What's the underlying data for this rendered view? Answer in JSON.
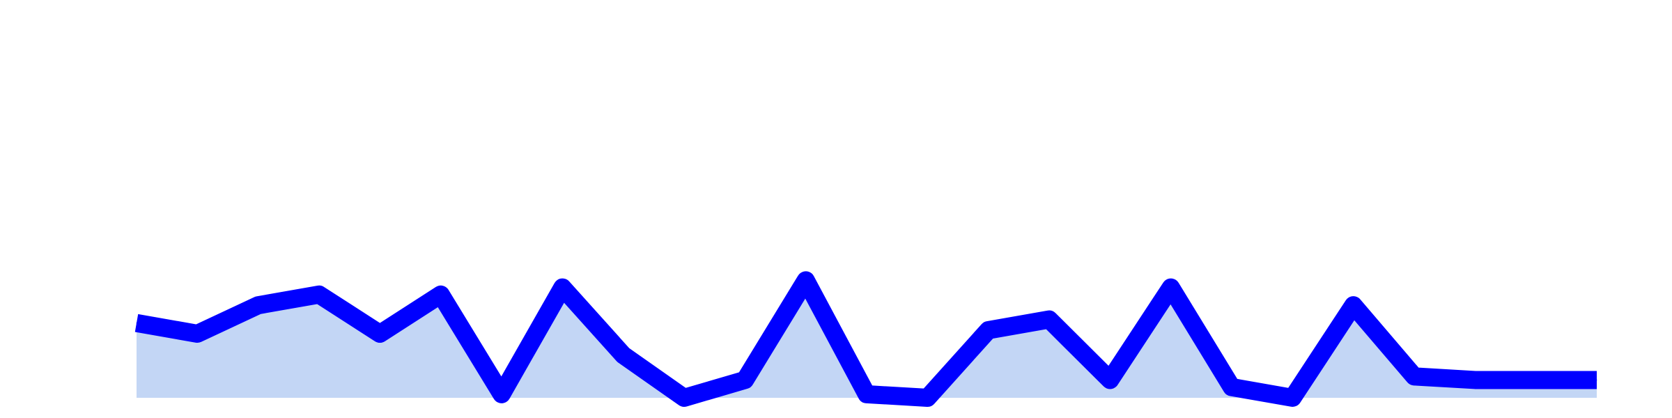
{
  "colors": {
    "background": "#ffffff",
    "line": "#0000ff",
    "area_fill": "#c3d6f5"
  },
  "chart_data": {
    "type": "area",
    "title": "",
    "xlabel": "",
    "ylabel": "",
    "grid": false,
    "x": [
      0,
      1,
      2,
      3,
      4,
      5,
      6,
      7,
      8,
      9,
      10,
      11,
      12,
      13,
      14,
      15,
      16,
      17,
      18,
      19,
      20,
      21,
      22,
      23,
      24
    ],
    "series": [
      {
        "values": [
          0.21,
          0.18,
          0.26,
          0.29,
          0.18,
          0.29,
          0.01,
          0.31,
          0.12,
          0.0,
          0.05,
          0.33,
          0.01,
          0.0,
          0.19,
          0.22,
          0.05,
          0.31,
          0.03,
          0.0,
          0.26,
          0.06,
          0.05,
          0.05,
          0.05
        ]
      }
    ],
    "xlim": [
      0,
      24
    ],
    "ylim": [
      0,
      1
    ]
  }
}
